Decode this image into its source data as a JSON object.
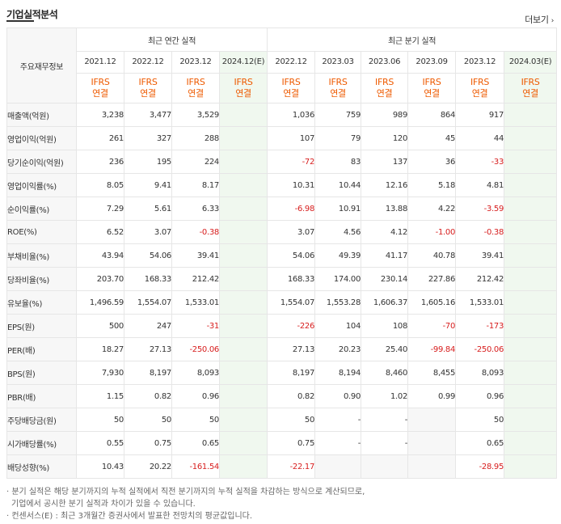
{
  "header": {
    "title": "기업실적분석",
    "more_label": "더보기"
  },
  "table": {
    "corner_label": "주요재무정보",
    "annual_group": "최근 연간 실적",
    "quarter_group": "최근 분기 실적",
    "periods": [
      "2021.12",
      "2022.12",
      "2023.12",
      "2024.12(E)",
      "2022.12",
      "2023.03",
      "2023.06",
      "2023.09",
      "2023.12",
      "2024.03(E)"
    ],
    "ifrs_line1": "IFRS",
    "ifrs_line2": "연결",
    "rows": [
      {
        "label": "매출액(억원)",
        "values": [
          "3,238",
          "3,477",
          "3,529",
          "",
          "1,036",
          "759",
          "989",
          "864",
          "917",
          ""
        ]
      },
      {
        "label": "영업이익(억원)",
        "values": [
          "261",
          "327",
          "288",
          "",
          "107",
          "79",
          "120",
          "45",
          "44",
          ""
        ]
      },
      {
        "label": "당기순이익(억원)",
        "values": [
          "236",
          "195",
          "224",
          "",
          "-72",
          "83",
          "137",
          "36",
          "-33",
          ""
        ]
      },
      {
        "label": "영업이익률(%)",
        "values": [
          "8.05",
          "9.41",
          "8.17",
          "",
          "10.31",
          "10.44",
          "12.16",
          "5.18",
          "4.81",
          ""
        ]
      },
      {
        "label": "순이익률(%)",
        "values": [
          "7.29",
          "5.61",
          "6.33",
          "",
          "-6.98",
          "10.91",
          "13.88",
          "4.22",
          "-3.59",
          ""
        ]
      },
      {
        "label": "ROE(%)",
        "values": [
          "6.52",
          "3.07",
          "-0.38",
          "",
          "3.07",
          "4.56",
          "4.12",
          "-1.00",
          "-0.38",
          ""
        ]
      },
      {
        "label": "부채비율(%)",
        "values": [
          "43.94",
          "54.06",
          "39.41",
          "",
          "54.06",
          "49.39",
          "41.17",
          "40.78",
          "39.41",
          ""
        ]
      },
      {
        "label": "당좌비율(%)",
        "values": [
          "203.70",
          "168.33",
          "212.42",
          "",
          "168.33",
          "174.00",
          "230.14",
          "227.86",
          "212.42",
          ""
        ]
      },
      {
        "label": "유보율(%)",
        "values": [
          "1,496.59",
          "1,554.07",
          "1,533.01",
          "",
          "1,554.07",
          "1,553.28",
          "1,606.37",
          "1,605.16",
          "1,533.01",
          ""
        ]
      },
      {
        "label": "EPS(원)",
        "values": [
          "500",
          "247",
          "-31",
          "",
          "-226",
          "104",
          "108",
          "-70",
          "-173",
          ""
        ]
      },
      {
        "label": "PER(배)",
        "values": [
          "18.27",
          "27.13",
          "-250.06",
          "",
          "27.13",
          "20.23",
          "25.40",
          "-99.84",
          "-250.06",
          ""
        ]
      },
      {
        "label": "BPS(원)",
        "values": [
          "7,930",
          "8,197",
          "8,093",
          "",
          "8,197",
          "8,194",
          "8,460",
          "8,455",
          "8,093",
          ""
        ]
      },
      {
        "label": "PBR(배)",
        "values": [
          "1.15",
          "0.82",
          "0.96",
          "",
          "0.82",
          "0.90",
          "1.02",
          "0.99",
          "0.96",
          ""
        ]
      },
      {
        "label": "주당배당금(원)",
        "values": [
          "50",
          "50",
          "50",
          "",
          "50",
          "-",
          "-",
          "",
          "50",
          ""
        ]
      },
      {
        "label": "시가배당률(%)",
        "values": [
          "0.55",
          "0.75",
          "0.65",
          "",
          "0.75",
          "-",
          "-",
          "",
          "0.65",
          ""
        ]
      },
      {
        "label": "배당성향(%)",
        "values": [
          "10.43",
          "20.22",
          "-161.54",
          "",
          "-22.17",
          "",
          "",
          "",
          "-28.95",
          ""
        ]
      }
    ]
  },
  "notes": [
    "· 분기 실적은 해당 분기까지의 누적 실적에서 직전 분기까지의 누적 실적을 차감하는 방식으로 계산되므로,",
    "  기업에서 공시한 분기 실적과 차이가 있을 수 있습니다.",
    "· 컨센서스(E) : 최근 3개월간 증권사에서 발표한 전망치의 평균값입니다."
  ]
}
